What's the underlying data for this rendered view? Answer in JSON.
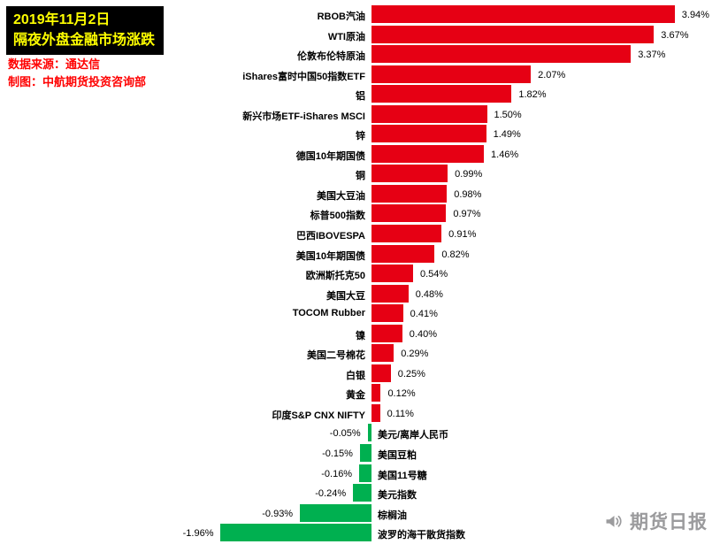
{
  "header": {
    "date": "2019年11月2日",
    "title": "隔夜外盘金融市场涨跌",
    "source": "数据来源：通达信",
    "credit": "制图：中航期货投资咨询部"
  },
  "watermark": {
    "brand": "期货日报",
    "icon": "megaphone-icon"
  },
  "colors": {
    "positive_bar": "#e60014",
    "negative_bar": "#00b050",
    "title_box_bg": "#000000",
    "title_box_text": "#ffff00",
    "source_text": "#ff0000",
    "watermark_text": "#9b9b9d"
  },
  "chart_data": {
    "type": "bar",
    "orientation": "horizontal",
    "title": "隔夜外盘金融市场涨跌",
    "subtitle": "2019年11月2日",
    "value_unit": "%",
    "value_range": [
      -1.96,
      3.94
    ],
    "grid": false,
    "legend": false,
    "positive_color": "#e60014",
    "negative_color": "#00b050",
    "items": [
      {
        "label": "RBOB汽油",
        "value": 3.94
      },
      {
        "label": "WTI原油",
        "value": 3.67
      },
      {
        "label": "伦敦布伦特原油",
        "value": 3.37
      },
      {
        "label": "iShares富时中国50指数ETF",
        "value": 2.07
      },
      {
        "label": "铝",
        "value": 1.82
      },
      {
        "label": "新兴市场ETF-iShares MSCI",
        "value": 1.5
      },
      {
        "label": "锌",
        "value": 1.49
      },
      {
        "label": "德国10年期国债",
        "value": 1.46
      },
      {
        "label": "铜",
        "value": 0.99
      },
      {
        "label": "美国大豆油",
        "value": 0.98
      },
      {
        "label": "标普500指数",
        "value": 0.97
      },
      {
        "label": "巴西IBOVESPA",
        "value": 0.91
      },
      {
        "label": "美国10年期国债",
        "value": 0.82
      },
      {
        "label": "欧洲斯托克50",
        "value": 0.54
      },
      {
        "label": "美国大豆",
        "value": 0.48
      },
      {
        "label": "TOCOM Rubber",
        "value": 0.41
      },
      {
        "label": "镍",
        "value": 0.4
      },
      {
        "label": "美国二号棉花",
        "value": 0.29
      },
      {
        "label": "白银",
        "value": 0.25
      },
      {
        "label": "黄金",
        "value": 0.12
      },
      {
        "label": "印度S&P CNX NIFTY",
        "value": 0.11
      },
      {
        "label": "美元/离岸人民币",
        "value": -0.05
      },
      {
        "label": "美国豆粕",
        "value": -0.15
      },
      {
        "label": "美国11号糖",
        "value": -0.16
      },
      {
        "label": "美元指数",
        "value": -0.24
      },
      {
        "label": "棕榈油",
        "value": -0.93
      },
      {
        "label": "波罗的海干散货指数",
        "value": -1.96
      }
    ]
  }
}
